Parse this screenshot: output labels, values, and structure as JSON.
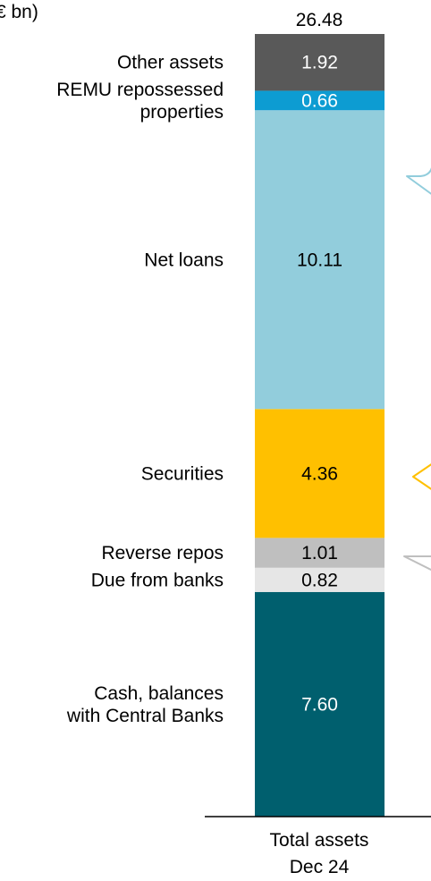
{
  "chart_data": {
    "type": "bar",
    "stacked": true,
    "title": "(€ bn)",
    "total_label": "26.48",
    "categories": [
      "Total assets",
      "Dec 24"
    ],
    "series": [
      {
        "name": "Cash, balances with Central Banks",
        "label_lines": [
          "Cash, balances",
          "with Central Banks"
        ],
        "value": 7.6,
        "value_label": "7.60",
        "color": "#005F6E",
        "value_color": "#ffffff"
      },
      {
        "name": "Due from banks",
        "label_lines": [
          "Due from banks"
        ],
        "value": 0.82,
        "value_label": "0.82",
        "color": "#E6E6E6",
        "value_color": "#000000"
      },
      {
        "name": "Reverse repos",
        "label_lines": [
          "Reverse repos"
        ],
        "value": 1.01,
        "value_label": "1.01",
        "color": "#BFBFBF",
        "value_color": "#000000"
      },
      {
        "name": "Securities",
        "label_lines": [
          "Securities"
        ],
        "value": 4.36,
        "value_label": "4.36",
        "color": "#FFC000",
        "value_color": "#000000"
      },
      {
        "name": "Net loans",
        "label_lines": [
          "Net loans"
        ],
        "value": 10.11,
        "value_label": "10.11",
        "color": "#92CDDC",
        "value_color": "#000000"
      },
      {
        "name": "REMU repossessed properties",
        "label_lines": [
          "REMU repossessed",
          "properties"
        ],
        "value": 0.66,
        "value_label": "0.66",
        "color": "#0D9CD2",
        "value_color": "#ffffff"
      },
      {
        "name": "Other assets",
        "label_lines": [
          "Other assets"
        ],
        "value": 1.92,
        "value_label": "1.92",
        "color": "#595959",
        "value_color": "#ffffff"
      }
    ],
    "ylim": [
      0,
      26.48
    ],
    "grid": false,
    "legend": "none",
    "callouts": [
      {
        "target": "Net loans",
        "color": "#92CDDC"
      },
      {
        "target": "Securities",
        "color": "#FFC000"
      },
      {
        "target": "Reverse repos",
        "color": "#BFBFBF"
      }
    ]
  }
}
